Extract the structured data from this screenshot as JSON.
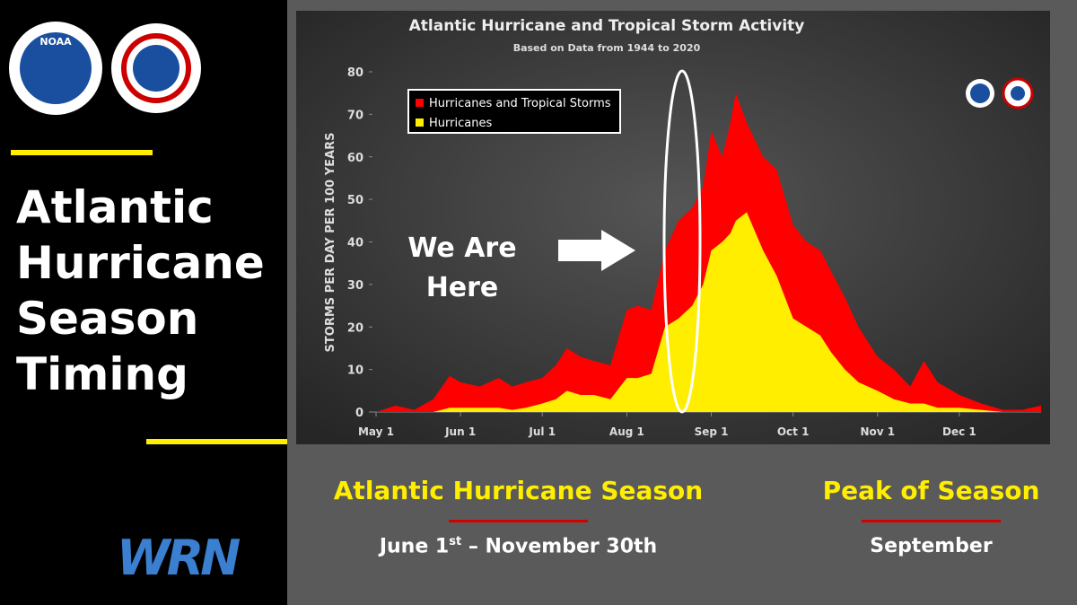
{
  "sidebar": {
    "title": "Atlantic Hurricane Season Timing",
    "logo_left": "NOAA",
    "logo_bottom": "WRN"
  },
  "chart_data": {
    "type": "area",
    "title": "Atlantic Hurricane and Tropical Storm Activity",
    "subtitle": "Based on Data from 1944 to 2020",
    "y_label": "STORMS PER DAY PER 100 YEARS",
    "annotation": "We Are Here",
    "x": [
      0,
      7,
      14,
      21,
      27,
      31,
      38,
      45,
      50,
      55,
      61,
      66,
      70,
      75,
      80,
      86,
      92,
      96,
      101,
      106,
      111,
      116,
      120,
      123,
      127,
      130,
      132,
      136,
      142,
      147,
      153,
      158,
      163,
      167,
      172,
      177,
      184,
      190,
      196,
      201,
      206,
      214,
      222,
      230,
      237,
      244
    ],
    "series": [
      {
        "name": "Hurricanes and Tropical Storms",
        "color": "#ff0000",
        "values": [
          0,
          1.5,
          0.5,
          3,
          8.5,
          7,
          6,
          8,
          6,
          7,
          8,
          11,
          15,
          13,
          12,
          11,
          24,
          25,
          24,
          38,
          45,
          48,
          53,
          66,
          60,
          68,
          75,
          68,
          60,
          57,
          44,
          40,
          38,
          33,
          27,
          20,
          13,
          10,
          6,
          12,
          7,
          4,
          2,
          0.5,
          0.5,
          1.5
        ]
      },
      {
        "name": "Hurricanes",
        "color": "#ffee00",
        "values": [
          0,
          0,
          0,
          0,
          1,
          1,
          1,
          1,
          0.5,
          1,
          2,
          3,
          5,
          4,
          4,
          3,
          8,
          8,
          9,
          20,
          22,
          25,
          30,
          38,
          40,
          42,
          45,
          47,
          38,
          32,
          22,
          20,
          18,
          14,
          10,
          7,
          5,
          3,
          2,
          2,
          1,
          1,
          0.5,
          0,
          0,
          0
        ]
      }
    ],
    "xlim": [
      0,
      244
    ],
    "xticks": [
      {
        "value": 0,
        "label": "May 1"
      },
      {
        "value": 31,
        "label": "Jun 1"
      },
      {
        "value": 61,
        "label": "Jul 1"
      },
      {
        "value": 92,
        "label": "Aug 1"
      },
      {
        "value": 123,
        "label": "Sep 1"
      },
      {
        "value": 153,
        "label": "Oct 1"
      },
      {
        "value": 184,
        "label": "Nov 1"
      },
      {
        "value": 214,
        "label": "Dec 1"
      }
    ],
    "ylim": [
      0,
      80
    ],
    "yticks": [
      0,
      10,
      20,
      30,
      40,
      50,
      60,
      70,
      80
    ],
    "legend": "upper left"
  },
  "footer": {
    "season_title": "Atlantic Hurricane Season",
    "season_dates": [
      "June 1",
      "st",
      "– November 30th"
    ],
    "peak_title": "Peak of Season",
    "peak_value": "September"
  }
}
